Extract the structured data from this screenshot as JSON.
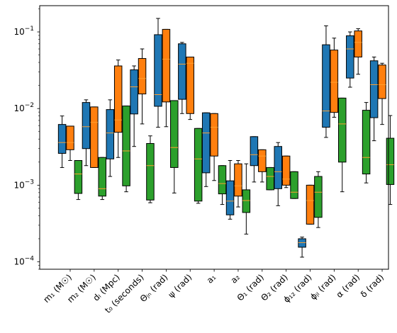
{
  "chart_data": {
    "type": "boxplot",
    "yscale": "log",
    "ylim": [
      8e-05,
      0.22
    ],
    "y_ticks": [
      {
        "value": 0.0001,
        "label": "10",
        "exp": "−4"
      },
      {
        "value": 0.001,
        "label": "10",
        "exp": "−3"
      },
      {
        "value": 0.01,
        "label": "10",
        "exp": "−2"
      },
      {
        "value": 0.1,
        "label": "10",
        "exp": "−1"
      }
    ],
    "categories": [
      "m₁ (M☉)",
      "m₂ (M☉)",
      "dₗ (Mpc)",
      "t₀ (seconds)",
      "Θⱼₙ (rad)",
      "ψ (rad)",
      "a₁",
      "a₂",
      "Θ₁ (rad)",
      "Θ₂ (rad)",
      "ϕ₁₂ (rad)",
      "ϕⱼₗ (rad)",
      "α (rad)",
      "δ (rad)"
    ],
    "median_color": "#ff9f2e",
    "series": [
      {
        "color": "#1f77b4",
        "boxes": [
          {
            "whislo": 0.0017,
            "q1": 0.0026,
            "med": 0.0036,
            "q3": 0.0062,
            "whishi": 0.008
          },
          {
            "whislo": 0.0018,
            "q1": 0.003,
            "med": 0.0058,
            "q3": 0.012,
            "whishi": 0.013
          },
          {
            "whislo": 0.0013,
            "q1": 0.0022,
            "med": 0.0048,
            "q3": 0.0097,
            "whishi": 0.013
          },
          {
            "whislo": 0.0032,
            "q1": 0.0085,
            "med": 0.0192,
            "q3": 0.032,
            "whishi": 0.036
          },
          {
            "whislo": 0.0057,
            "q1": 0.0107,
            "med": 0.0152,
            "q3": 0.092,
            "whishi": 0.15
          },
          {
            "whislo": 0.0086,
            "q1": 0.0132,
            "med": 0.038,
            "q3": 0.07,
            "whishi": 0.073
          },
          {
            "whislo": 0.00096,
            "q1": 0.00145,
            "med": 0.0048,
            "q3": 0.0088,
            "whishi": 0.0088
          },
          {
            "whislo": 0.00036,
            "q1": 0.00041,
            "med": 0.00062,
            "q3": 0.00114,
            "whishi": 0.0021
          },
          {
            "whislo": 0.0011,
            "q1": 0.0018,
            "med": 0.0025,
            "q3": 0.0043,
            "whishi": 0.0043
          },
          {
            "whislo": 0.00054,
            "q1": 0.0009,
            "med": 0.0015,
            "q3": 0.0032,
            "whishi": 0.0036
          },
          {
            "whislo": 0.000115,
            "q1": 0.000155,
            "med": 0.000178,
            "q3": 0.0002,
            "whishi": 0.00021
          },
          {
            "whislo": 0.0042,
            "q1": 0.0057,
            "med": 0.0093,
            "q3": 0.068,
            "whishi": 0.12
          },
          {
            "whislo": 0.019,
            "q1": 0.025,
            "med": 0.06,
            "q3": 0.089,
            "whishi": 0.1
          },
          {
            "whislo": 0.0038,
            "q1": 0.0076,
            "med": 0.0205,
            "q3": 0.042,
            "whishi": 0.047
          }
        ]
      },
      {
        "color": "#ff7f0e",
        "boxes": [
          {
            "whislo": 0.0021,
            "q1": 0.0029,
            "med": 0.0036,
            "q3": 0.0059,
            "whishi": 0.0059
          },
          {
            "whislo": 0.0017,
            "q1": 0.0017,
            "med": 0.0066,
            "q3": 0.0105,
            "whishi": 0.0105
          },
          {
            "whislo": 0.0023,
            "q1": 0.0049,
            "med": 0.0071,
            "q3": 0.036,
            "whishi": 0.043
          },
          {
            "whislo": 0.0063,
            "q1": 0.0155,
            "med": 0.0247,
            "q3": 0.045,
            "whishi": 0.06
          },
          {
            "whislo": 0.0058,
            "q1": 0.0122,
            "med": 0.044,
            "q3": 0.108,
            "whishi": 0.108
          },
          {
            "whislo": 0.0072,
            "q1": 0.0086,
            "med": 0.039,
            "q3": 0.047,
            "whishi": 0.047
          },
          {
            "whislo": 0.00115,
            "q1": 0.0024,
            "med": 0.0057,
            "q3": 0.0086,
            "whishi": 0.0086
          },
          {
            "whislo": 0.00052,
            "q1": 0.00072,
            "med": 0.00098,
            "q3": 0.0019,
            "whishi": 0.0021
          },
          {
            "whislo": 0.0011,
            "q1": 0.0015,
            "med": 0.0024,
            "q3": 0.0029,
            "whishi": 0.0029
          },
          {
            "whislo": 0.00093,
            "q1": 0.001,
            "med": 0.0012,
            "q3": 0.0024,
            "whishi": 0.0024
          },
          {
            "whislo": 0.00031,
            "q1": 0.00031,
            "med": 0.00063,
            "q3": 0.001,
            "whishi": 0.001
          },
          {
            "whislo": 0.0077,
            "q1": 0.0089,
            "med": 0.022,
            "q3": 0.058,
            "whishi": 0.083
          },
          {
            "whislo": 0.028,
            "q1": 0.047,
            "med": 0.073,
            "q3": 0.103,
            "whishi": 0.11
          },
          {
            "whislo": 0.0062,
            "q1": 0.0135,
            "med": 0.0205,
            "q3": 0.037,
            "whishi": 0.039
          }
        ]
      },
      {
        "color": "#2ca02c",
        "boxes": [
          {
            "whislo": 0.00065,
            "q1": 0.00078,
            "med": 0.0014,
            "q3": 0.0021,
            "whishi": 0.0021
          },
          {
            "whislo": 0.00065,
            "q1": 0.00072,
            "med": 0.0009,
            "q3": 0.0023,
            "whishi": 0.0023
          },
          {
            "whislo": 0.00082,
            "q1": 0.00098,
            "med": 0.0028,
            "q3": 0.0108,
            "whishi": 0.0108
          },
          {
            "whislo": 0.00059,
            "q1": 0.00064,
            "med": 0.0018,
            "q3": 0.0035,
            "whishi": 0.0044
          },
          {
            "whislo": 0.00079,
            "q1": 0.0017,
            "med": 0.0031,
            "q3": 0.0127,
            "whishi": 0.0127
          },
          {
            "whislo": 0.00058,
            "q1": 0.00062,
            "med": 0.0022,
            "q3": 0.0055,
            "whishi": 0.0055
          },
          {
            "whislo": 0.00056,
            "q1": 0.00077,
            "med": 0.00105,
            "q3": 0.0018,
            "whishi": 0.0018
          },
          {
            "whislo": 0.00023,
            "q1": 0.00044,
            "med": 0.00063,
            "q3": 0.00087,
            "whishi": 0.0019
          },
          {
            "whislo": 0.00087,
            "q1": 0.00087,
            "med": 0.0013,
            "q3": 0.0017,
            "whishi": 0.0017
          },
          {
            "whislo": 0.00067,
            "q1": 0.00067,
            "med": 0.00081,
            "q3": 0.0015,
            "whishi": 0.0015
          },
          {
            "whislo": 0.00028,
            "q1": 0.00038,
            "med": 0.00081,
            "q3": 0.0013,
            "whishi": 0.0015
          },
          {
            "whislo": 0.00082,
            "q1": 0.002,
            "med": 0.0063,
            "q3": 0.0137,
            "whishi": 0.0137
          },
          {
            "whislo": 0.00107,
            "q1": 0.0014,
            "med": 0.0023,
            "q3": 0.0095,
            "whishi": 0.012
          },
          {
            "whislo": 0.00056,
            "q1": 0.00102,
            "med": 0.00185,
            "q3": 0.0041,
            "whishi": 0.0081
          }
        ]
      }
    ]
  }
}
